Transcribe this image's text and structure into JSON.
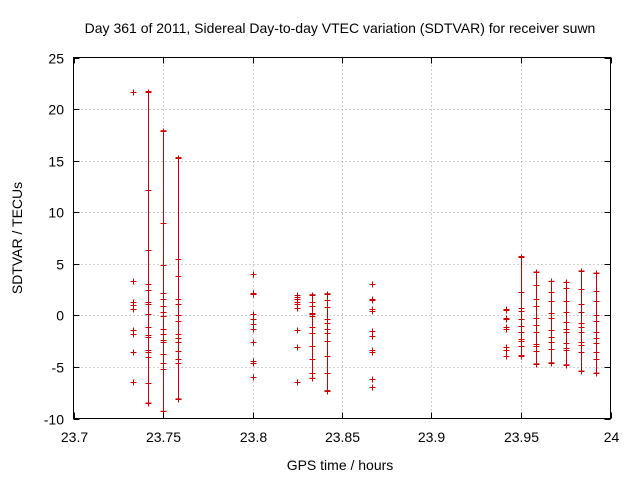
{
  "chart_data": {
    "type": "scatter",
    "title": "Day 361 of 2011, Sidereal Day-to-day VTEC variation (SDTVAR) for receiver suwn",
    "xlabel": "GPS time / hours",
    "ylabel": "SDTVAR / TECUs",
    "xlim": [
      23.7,
      24.0
    ],
    "ylim": [
      -10,
      25
    ],
    "x_ticks": [
      23.7,
      23.75,
      23.8,
      23.85,
      23.9,
      23.95,
      24.0
    ],
    "x_tick_labels": [
      "23.7",
      "23.75",
      "23.8",
      "23.85",
      "23.9",
      "23.95",
      "24"
    ],
    "y_ticks": [
      -10,
      -5,
      0,
      5,
      10,
      15,
      20,
      25
    ],
    "y_tick_labels": [
      "-10",
      "-5",
      "0",
      "5",
      "10",
      "15",
      "20",
      "25"
    ],
    "grid": true,
    "color": "#cc0000",
    "errorbars": [
      {
        "x": 23.7417,
        "low": -8.5,
        "high": 21.7
      },
      {
        "x": 23.75,
        "low": -9.3,
        "high": 17.9
      },
      {
        "x": 23.7583,
        "low": -8.1,
        "high": 15.3
      },
      {
        "x": 23.8333,
        "low": -6.1,
        "high": 2.0
      },
      {
        "x": 23.8417,
        "low": -7.3,
        "high": 2.1
      },
      {
        "x": 23.95,
        "low": -3.9,
        "high": 5.7
      },
      {
        "x": 23.9583,
        "low": -4.7,
        "high": 4.2
      },
      {
        "x": 23.9667,
        "low": -4.6,
        "high": 3.3
      },
      {
        "x": 23.975,
        "low": -4.8,
        "high": 3.2
      },
      {
        "x": 23.9833,
        "low": -5.4,
        "high": 4.3
      },
      {
        "x": 23.9917,
        "low": -5.6,
        "high": 4.1
      }
    ],
    "points": [
      {
        "x": 23.7333,
        "y": [
          21.7,
          3.3,
          1.3,
          1.0,
          0.6,
          -1.4,
          -1.8,
          -3.6,
          -6.5
        ]
      },
      {
        "x": 23.7417,
        "y": [
          21.7,
          12.2,
          6.3,
          3.0,
          2.5,
          1.3,
          1.1,
          0.1,
          -1.1,
          -1.9,
          -2.1,
          -3.4,
          -3.6,
          -4.0,
          -6.6,
          -8.5
        ]
      },
      {
        "x": 23.75,
        "y": [
          17.9,
          9.0,
          4.9,
          2.2,
          1.6,
          0.9,
          0.3,
          -0.1,
          -1.3,
          -1.8,
          -2.4,
          -2.6,
          -3.7,
          -4.6,
          -5.2,
          -9.3
        ]
      },
      {
        "x": 23.7583,
        "y": [
          15.3,
          5.5,
          3.8,
          1.6,
          1.1,
          0.0,
          -0.5,
          -1.8,
          -2.2,
          -2.6,
          -3.5,
          -4.2,
          -4.6,
          -8.1
        ]
      },
      {
        "x": 23.8,
        "y": [
          4.0,
          2.2,
          2.1,
          0.1,
          -0.4,
          -0.8,
          -1.3,
          -2.6,
          -4.4,
          -4.6,
          -6.0
        ]
      },
      {
        "x": 23.825,
        "y": [
          2.0,
          1.8,
          1.6,
          1.3,
          1.1,
          0.7,
          -1.4,
          -3.1,
          -6.5
        ]
      },
      {
        "x": 23.8333,
        "y": [
          2.0,
          1.3,
          0.9,
          0.2,
          0.1,
          -0.1,
          -1.1,
          -1.7,
          -3.0,
          -4.2,
          -5.6,
          -6.1
        ]
      },
      {
        "x": 23.8417,
        "y": [
          2.1,
          1.5,
          0.8,
          -0.4,
          -0.7,
          -1.3,
          -1.7,
          -2.5,
          -3.9,
          -5.6,
          -7.3
        ]
      },
      {
        "x": 23.8667,
        "y": [
          3.0,
          1.6,
          1.5,
          0.6,
          0.4,
          -1.5,
          -2.0,
          -3.4,
          -3.6,
          -6.2,
          -6.9
        ]
      },
      {
        "x": 23.9417,
        "y": [
          0.6,
          0.5,
          -0.3,
          -0.4,
          -1.1,
          -1.3,
          -3.1,
          -3.4,
          -3.9
        ]
      },
      {
        "x": 23.95,
        "y": [
          5.7,
          2.3,
          0.7,
          0.4,
          -0.4,
          -1.0,
          -1.6,
          -2.3,
          -2.5,
          -3.0,
          -3.9
        ]
      },
      {
        "x": 23.9583,
        "y": [
          4.2,
          2.9,
          1.6,
          0.9,
          -0.3,
          -0.9,
          -1.6,
          -2.8,
          -3.0,
          -3.5,
          -4.7
        ]
      },
      {
        "x": 23.9667,
        "y": [
          3.3,
          2.3,
          1.4,
          0.2,
          -0.3,
          -1.4,
          -2.1,
          -2.6,
          -3.3,
          -4.6
        ]
      },
      {
        "x": 23.975,
        "y": [
          3.2,
          2.7,
          1.4,
          0.3,
          -0.6,
          -1.3,
          -1.6,
          -2.7,
          -3.2,
          -3.4,
          -4.8
        ]
      },
      {
        "x": 23.9833,
        "y": [
          4.3,
          2.6,
          1.1,
          0.3,
          -0.7,
          -1.1,
          -1.6,
          -2.6,
          -2.9,
          -3.6,
          -5.4
        ]
      },
      {
        "x": 23.9917,
        "y": [
          4.1,
          2.4,
          1.4,
          0.0,
          -0.5,
          -1.6,
          -2.2,
          -2.7,
          -3.6,
          -4.2,
          -5.6
        ]
      }
    ]
  }
}
